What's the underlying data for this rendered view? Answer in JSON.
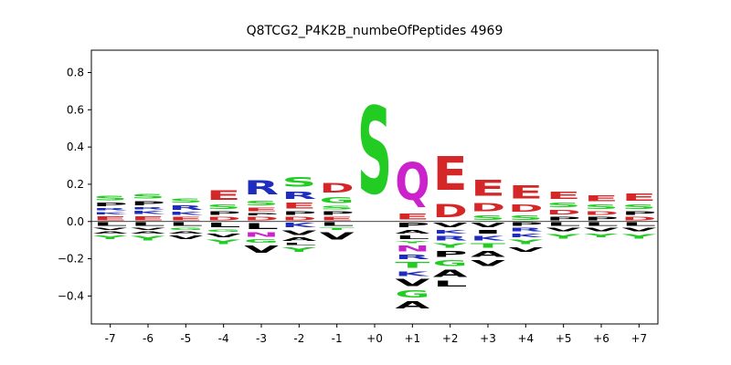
{
  "chart_data": {
    "type": "sequence-logo",
    "title": "Q8TCG2_P4K2B_numbeOfPeptides 4969",
    "xlabel": "",
    "ylabel": "",
    "positions": [
      "-7",
      "-6",
      "-5",
      "-4",
      "-3",
      "-2",
      "-1",
      "+0",
      "+1",
      "+2",
      "+3",
      "+4",
      "+5",
      "+6",
      "+7"
    ],
    "ylim": [
      -0.55,
      0.92
    ],
    "yticks": [
      -0.4,
      -0.2,
      0.0,
      0.2,
      0.4,
      0.6,
      0.8
    ],
    "ytick_labels": [
      "−0.4",
      "−0.2",
      "0.0",
      "0.2",
      "0.4",
      "0.6",
      "0.8"
    ],
    "grid": false,
    "colors": {
      "acidic": "#d62728",
      "basic": "#1f2dbf",
      "polar": "#22cc22",
      "hydrophobic": "#000000",
      "special": "#cc22cc"
    },
    "stacks": [
      {
        "pos": "-7",
        "up": [
          [
            "E",
            0.035
          ],
          [
            "K",
            0.02
          ],
          [
            "R",
            0.02
          ],
          [
            "P",
            0.03
          ],
          [
            "S",
            0.04
          ]
        ],
        "down": [
          [
            "L",
            0.03
          ],
          [
            "V",
            0.02
          ],
          [
            "A",
            0.02
          ],
          [
            "Y",
            0.03
          ]
        ]
      },
      {
        "pos": "-6",
        "up": [
          [
            "E",
            0.035
          ],
          [
            "K",
            0.025
          ],
          [
            "R",
            0.02
          ],
          [
            "P",
            0.035
          ],
          [
            "S",
            0.04
          ]
        ],
        "down": [
          [
            "L",
            0.03
          ],
          [
            "V",
            0.02
          ],
          [
            "A",
            0.02
          ],
          [
            "Y",
            0.04
          ]
        ]
      },
      {
        "pos": "-5",
        "up": [
          [
            "E",
            0.03
          ],
          [
            "K",
            0.025
          ],
          [
            "R",
            0.04
          ],
          [
            "S",
            0.035
          ]
        ],
        "down": [
          [
            "L",
            0.03
          ],
          [
            "G",
            0.02
          ],
          [
            "A",
            0.02
          ],
          [
            "V",
            0.03
          ]
        ]
      },
      {
        "pos": "-4",
        "up": [
          [
            "D",
            0.03
          ],
          [
            "P",
            0.03
          ],
          [
            "S",
            0.04
          ],
          [
            "E",
            0.08
          ]
        ],
        "down": [
          [
            "L",
            0.04
          ],
          [
            "G",
            0.02
          ],
          [
            "V",
            0.03
          ],
          [
            "Y",
            0.04
          ]
        ]
      },
      {
        "pos": "-3",
        "up": [
          [
            "D",
            0.03
          ],
          [
            "P",
            0.02
          ],
          [
            "E",
            0.03
          ],
          [
            "S",
            0.04
          ],
          [
            "R",
            0.12
          ]
        ],
        "down": [
          [
            "L",
            0.05
          ],
          [
            "N",
            0.04
          ],
          [
            "G",
            0.03
          ],
          [
            "V",
            0.06
          ]
        ]
      },
      {
        "pos": "-2",
        "up": [
          [
            "D",
            0.03
          ],
          [
            "P",
            0.03
          ],
          [
            "E",
            0.05
          ],
          [
            "R",
            0.06
          ],
          [
            "S",
            0.08
          ]
        ],
        "down": [
          [
            "K",
            0.04
          ],
          [
            "V",
            0.04
          ],
          [
            "A",
            0.03
          ],
          [
            "L",
            0.02
          ],
          [
            "Y",
            0.04
          ]
        ]
      },
      {
        "pos": "-1",
        "up": [
          [
            "E",
            0.03
          ],
          [
            "P",
            0.03
          ],
          [
            "S",
            0.03
          ],
          [
            "G",
            0.05
          ],
          [
            "D",
            0.08
          ]
        ],
        "down": [
          [
            "L",
            0.03
          ],
          [
            "T",
            0.02
          ],
          [
            "V",
            0.06
          ]
        ]
      },
      {
        "pos": "+0",
        "up": [
          [
            "S",
            0.75
          ]
        ],
        "down": []
      },
      {
        "pos": "+1",
        "up": [
          [
            "E",
            0.05
          ],
          [
            "Q",
            0.32
          ]
        ],
        "down": [
          [
            "P",
            0.04
          ],
          [
            "A",
            0.03
          ],
          [
            "L",
            0.03
          ],
          [
            "Y",
            0.02
          ],
          [
            "N",
            0.05
          ],
          [
            "R",
            0.04
          ],
          [
            "T",
            0.05
          ],
          [
            "K",
            0.04
          ],
          [
            "V",
            0.06
          ],
          [
            "G",
            0.06
          ],
          [
            "A",
            0.06
          ]
        ]
      },
      {
        "pos": "+2",
        "up": [
          [
            "D",
            0.11
          ],
          [
            "E",
            0.29
          ]
        ],
        "down": [
          [
            "V",
            0.04
          ],
          [
            "K",
            0.03
          ],
          [
            "R",
            0.04
          ],
          [
            "Y",
            0.04
          ],
          [
            "P",
            0.05
          ],
          [
            "G",
            0.05
          ],
          [
            "A",
            0.06
          ],
          [
            "L",
            0.05
          ]
        ]
      },
      {
        "pos": "+3",
        "up": [
          [
            "S",
            0.04
          ],
          [
            "D",
            0.07
          ],
          [
            "E",
            0.14
          ]
        ],
        "down": [
          [
            "V",
            0.04
          ],
          [
            "I",
            0.03
          ],
          [
            "K",
            0.04
          ],
          [
            "T",
            0.04
          ],
          [
            "A",
            0.05
          ],
          [
            "V",
            0.05
          ]
        ]
      },
      {
        "pos": "+4",
        "up": [
          [
            "S",
            0.04
          ],
          [
            "D",
            0.06
          ],
          [
            "E",
            0.11
          ]
        ],
        "down": [
          [
            "P",
            0.03
          ],
          [
            "R",
            0.03
          ],
          [
            "K",
            0.03
          ],
          [
            "Y",
            0.04
          ],
          [
            "V",
            0.04
          ]
        ]
      },
      {
        "pos": "+5",
        "up": [
          [
            "P",
            0.03
          ],
          [
            "D",
            0.04
          ],
          [
            "S",
            0.04
          ],
          [
            "E",
            0.06
          ]
        ],
        "down": [
          [
            "L",
            0.03
          ],
          [
            "V",
            0.03
          ],
          [
            "Y",
            0.04
          ]
        ]
      },
      {
        "pos": "+6",
        "up": [
          [
            "P",
            0.03
          ],
          [
            "D",
            0.03
          ],
          [
            "S",
            0.04
          ],
          [
            "E",
            0.05
          ]
        ],
        "down": [
          [
            "L",
            0.03
          ],
          [
            "V",
            0.03
          ],
          [
            "Y",
            0.03
          ]
        ]
      },
      {
        "pos": "+7",
        "up": [
          [
            "D",
            0.03
          ],
          [
            "P",
            0.03
          ],
          [
            "S",
            0.04
          ],
          [
            "E",
            0.06
          ]
        ],
        "down": [
          [
            "L",
            0.03
          ],
          [
            "V",
            0.03
          ],
          [
            "Y",
            0.04
          ]
        ]
      }
    ],
    "residue_colors": {
      "D": "acidic",
      "E": "acidic",
      "K": "basic",
      "R": "basic",
      "H": "basic",
      "S": "polar",
      "T": "polar",
      "G": "polar",
      "Y": "polar",
      "C": "polar",
      "N": "special",
      "Q": "special",
      "A": "hydrophobic",
      "V": "hydrophobic",
      "L": "hydrophobic",
      "I": "hydrophobic",
      "P": "hydrophobic",
      "F": "hydrophobic",
      "M": "hydrophobic",
      "W": "hydrophobic"
    }
  }
}
